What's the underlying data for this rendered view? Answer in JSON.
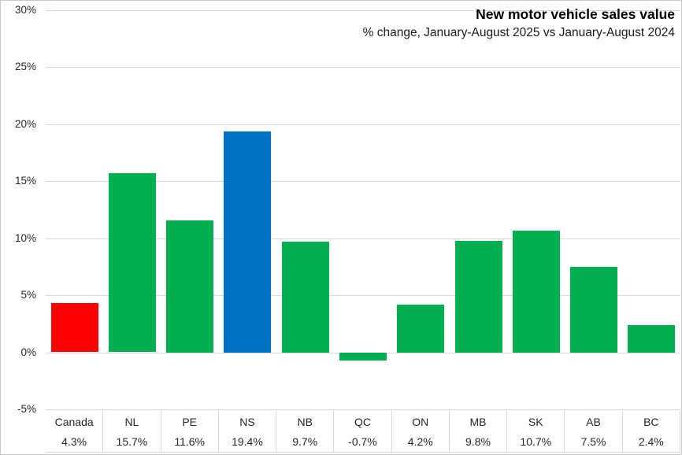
{
  "chart_data": {
    "type": "bar",
    "title": "New motor vehicle sales value",
    "subtitle": "% change, January-August 2025 vs January-August 2024",
    "categories": [
      "Canada",
      "NL",
      "PE",
      "NS",
      "NB",
      "QC",
      "ON",
      "MB",
      "SK",
      "AB",
      "BC"
    ],
    "values": [
      4.3,
      15.7,
      11.6,
      19.4,
      9.7,
      -0.7,
      4.2,
      9.8,
      10.7,
      7.5,
      2.4
    ],
    "value_labels": [
      "4.3%",
      "15.7%",
      "11.6%",
      "19.4%",
      "9.7%",
      "-0.7%",
      "4.2%",
      "9.8%",
      "10.7%",
      "7.5%",
      "2.4%"
    ],
    "bar_colors": [
      "#ff0000",
      "#00b050",
      "#00b050",
      "#0070c0",
      "#00b050",
      "#00b050",
      "#00b050",
      "#00b050",
      "#00b050",
      "#00b050",
      "#00b050"
    ],
    "ylim": [
      -5,
      30
    ],
    "ytick_step": 5,
    "ytick_labels": [
      "30%",
      "25%",
      "20%",
      "15%",
      "10%",
      "5%",
      "0%",
      "-5%"
    ],
    "grid": true,
    "legend_position": "none",
    "data_table_shown": true,
    "colors": {
      "gridline": "#d9d9d9",
      "axis_text": "#262626",
      "table_text": "#262626",
      "table_border": "#d9d9d9",
      "chart_border": "#c9c9c9",
      "background": "#ffffff"
    }
  }
}
